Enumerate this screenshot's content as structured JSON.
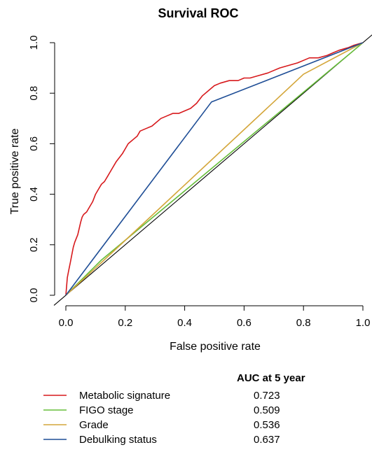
{
  "chart_data": {
    "type": "line",
    "title": "Survival ROC",
    "xlabel": "False positive rate",
    "ylabel": "True positive rate",
    "xlim": [
      0,
      1
    ],
    "ylim": [
      0,
      1
    ],
    "xticks": [
      "0.0",
      "0.2",
      "0.4",
      "0.6",
      "0.8",
      "1.0"
    ],
    "yticks": [
      "0.0",
      "0.2",
      "0.4",
      "0.6",
      "0.8",
      "1.0"
    ],
    "grid": false,
    "legend_position": "bottom",
    "legend_header": "AUC at 5 year",
    "reference_line": {
      "x": [
        0,
        1
      ],
      "y": [
        0,
        1
      ],
      "color": "#000000"
    },
    "series": [
      {
        "name": "Metabolic signature",
        "auc": "0.723",
        "color": "#d7191c",
        "x": [
          0,
          0.005,
          0.01,
          0.015,
          0.02,
          0.025,
          0.03,
          0.04,
          0.05,
          0.055,
          0.06,
          0.07,
          0.08,
          0.09,
          0.1,
          0.11,
          0.12,
          0.13,
          0.14,
          0.15,
          0.17,
          0.19,
          0.2,
          0.21,
          0.22,
          0.23,
          0.24,
          0.25,
          0.27,
          0.29,
          0.3,
          0.32,
          0.34,
          0.36,
          0.38,
          0.4,
          0.42,
          0.44,
          0.46,
          0.48,
          0.5,
          0.52,
          0.55,
          0.58,
          0.6,
          0.62,
          0.65,
          0.68,
          0.7,
          0.72,
          0.75,
          0.78,
          0.8,
          0.82,
          0.85,
          0.88,
          0.9,
          0.92,
          0.95,
          0.97,
          1.0
        ],
        "y": [
          0,
          0.07,
          0.1,
          0.13,
          0.16,
          0.19,
          0.21,
          0.24,
          0.29,
          0.31,
          0.32,
          0.33,
          0.35,
          0.37,
          0.4,
          0.42,
          0.44,
          0.45,
          0.47,
          0.49,
          0.53,
          0.56,
          0.58,
          0.6,
          0.61,
          0.62,
          0.63,
          0.65,
          0.66,
          0.67,
          0.68,
          0.7,
          0.71,
          0.72,
          0.72,
          0.73,
          0.74,
          0.76,
          0.79,
          0.81,
          0.83,
          0.84,
          0.85,
          0.85,
          0.86,
          0.86,
          0.87,
          0.88,
          0.89,
          0.9,
          0.91,
          0.92,
          0.93,
          0.94,
          0.94,
          0.95,
          0.96,
          0.97,
          0.98,
          0.99,
          1.0
        ]
      },
      {
        "name": "FIGO stage",
        "auc": "0.509",
        "color": "#66bd3a",
        "x": [
          0,
          0.12,
          0.96,
          1.0
        ],
        "y": [
          0,
          0.14,
          0.96,
          1.0
        ]
      },
      {
        "name": "Grade",
        "auc": "0.536",
        "color": "#d4a63a",
        "x": [
          0,
          0.12,
          0.8,
          1.0
        ],
        "y": [
          0,
          0.13,
          0.875,
          1.0
        ]
      },
      {
        "name": "Debulking status",
        "auc": "0.637",
        "color": "#1f4e96",
        "x": [
          0,
          0.49,
          1.0
        ],
        "y": [
          0,
          0.765,
          1.0
        ]
      }
    ]
  }
}
